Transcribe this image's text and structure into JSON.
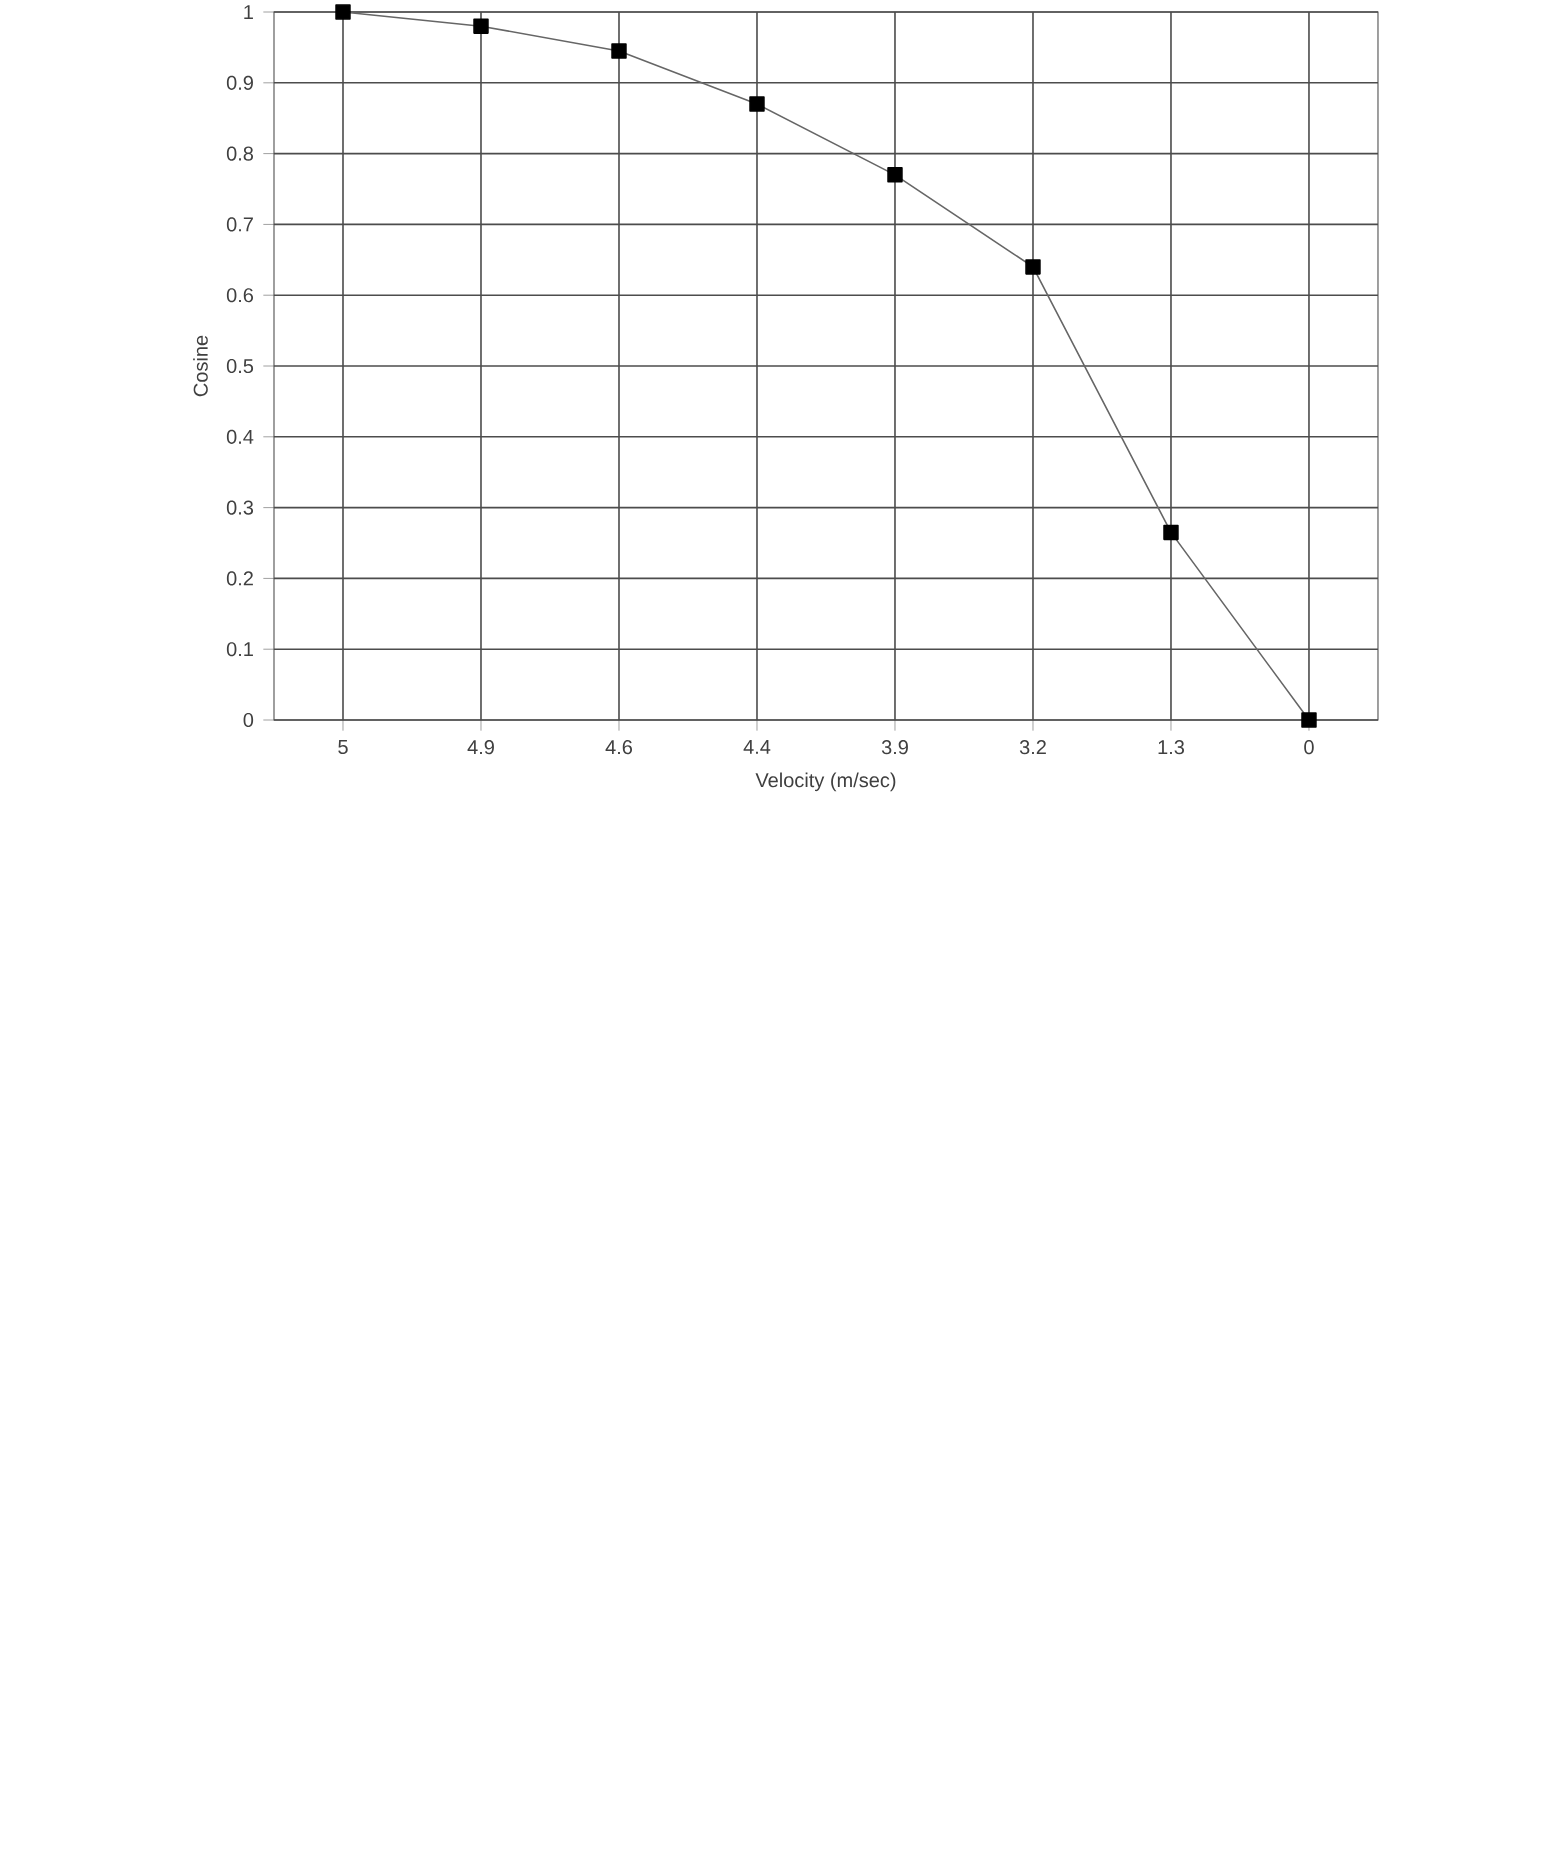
{
  "chart_data": {
    "type": "line",
    "xlabel": "Velocity (m/sec)",
    "ylabel": "Cosine",
    "categories": [
      "5",
      "4.9",
      "4.6",
      "4.4",
      "3.9",
      "3.2",
      "1.3",
      "0"
    ],
    "series": [
      {
        "color": "#000000",
        "values": [
          1,
          0.98,
          0.945,
          0.87,
          0.77,
          0.64,
          0.265,
          0
        ]
      }
    ],
    "ylim": [
      0,
      1
    ],
    "yticks": [
      0,
      0.1,
      0.2,
      0.3,
      0.4,
      0.5,
      0.6,
      0.7,
      0.8,
      0.9,
      1
    ],
    "grid": true,
    "marker": "square",
    "line_style": "solid"
  }
}
